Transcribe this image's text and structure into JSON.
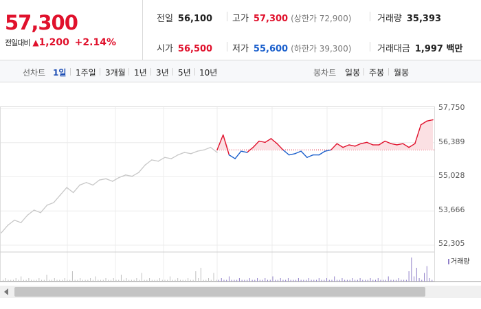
{
  "quote": {
    "price": "57,300",
    "change_label": "전일대비",
    "change_symbol": "▲",
    "change_amount": "1,200",
    "change_percent": "+2.14%"
  },
  "stats": {
    "prev_close": {
      "label": "전일",
      "value": "56,100"
    },
    "open": {
      "label": "시가",
      "value": "56,500"
    },
    "high": {
      "label": "고가",
      "value": "57,300",
      "sub": "(상한가 72,900)"
    },
    "low": {
      "label": "저가",
      "value": "55,600",
      "sub": "(하한가 39,300)"
    },
    "volume": {
      "label": "거래량",
      "value": "35,393"
    },
    "amount": {
      "label": "거래대금",
      "value": "1,997 백만"
    }
  },
  "line_chart_label": "선차트",
  "periods": [
    "1일",
    "1주일",
    "3개월",
    "1년",
    "3년",
    "5년",
    "10년"
  ],
  "active_period": "1일",
  "candle_chart_label": "봉차트",
  "candle_periods": [
    "일봉",
    "주봉",
    "월봉"
  ],
  "colors": {
    "up": "#e0112c",
    "down": "#1a5fcc",
    "prev": "#c8c8c8",
    "volume": "#8f7fc8"
  },
  "chart_data": {
    "type": "line",
    "title": "",
    "xlabel": "",
    "ylabel": "",
    "y_ticks": [
      "57,750",
      "56,389",
      "55,028",
      "53,666",
      "52,305"
    ],
    "ylim": [
      52305,
      57750
    ],
    "reference_price": 56100,
    "series": [
      {
        "values": [
          52800,
          53100,
          53300,
          53200,
          53500,
          53700,
          53600,
          53900,
          54000,
          54300,
          54600,
          54400,
          54700,
          54800,
          54700,
          54900,
          54950,
          54850,
          55000,
          55100,
          55050,
          55200,
          55500,
          55700,
          55650,
          55800,
          55750,
          55900,
          56000,
          55950,
          56050,
          56100,
          56200,
          56000
        ]
      },
      {
        "values": [
          56100,
          56700,
          55900,
          55750,
          56050,
          56000,
          56200,
          56450,
          56400,
          56550,
          56350,
          56100,
          55900,
          55950,
          56050,
          55800,
          55900,
          55900,
          56050,
          56100,
          56350,
          56200,
          56300,
          56250,
          56350,
          56400,
          56300,
          56300,
          56450,
          56350,
          56300,
          56350,
          56200,
          56350,
          57100,
          57250,
          57300
        ]
      }
    ],
    "volume_label": "거래량",
    "volume": [
      1,
      2,
      1,
      1,
      1,
      2,
      1,
      3,
      1,
      1,
      2,
      1,
      1,
      1,
      2,
      1,
      1,
      4,
      1,
      1,
      2,
      1,
      1,
      1,
      2,
      1,
      1,
      6,
      1,
      1,
      2,
      1,
      1,
      1,
      2,
      1,
      3,
      1,
      1,
      1,
      2,
      1,
      1,
      2,
      1,
      1,
      4,
      1,
      2,
      1,
      1,
      1,
      2,
      1,
      5,
      1,
      1,
      2,
      1,
      1,
      1,
      2,
      1,
      1,
      1,
      3,
      1,
      1,
      2,
      1,
      1,
      1,
      2,
      1,
      1,
      6,
      2,
      8,
      1,
      1,
      2,
      1,
      5,
      1,
      1,
      2,
      1,
      1,
      3,
      1,
      1,
      1,
      2,
      1,
      1,
      1,
      2,
      1,
      1,
      2,
      1,
      1,
      2,
      1,
      1,
      3,
      1,
      1,
      2,
      1,
      1,
      2,
      1,
      1,
      1,
      2,
      1,
      1,
      1,
      2,
      1,
      1,
      1,
      2,
      1,
      1,
      2,
      1,
      1,
      3,
      1,
      1,
      2,
      1,
      1,
      1,
      2,
      1,
      1,
      2,
      1,
      1,
      1,
      2,
      1,
      1,
      2,
      1,
      1,
      1,
      3,
      1,
      1,
      1,
      2,
      1,
      1,
      1,
      6,
      14,
      3,
      8,
      2,
      1,
      5,
      9,
      2,
      1
    ]
  }
}
